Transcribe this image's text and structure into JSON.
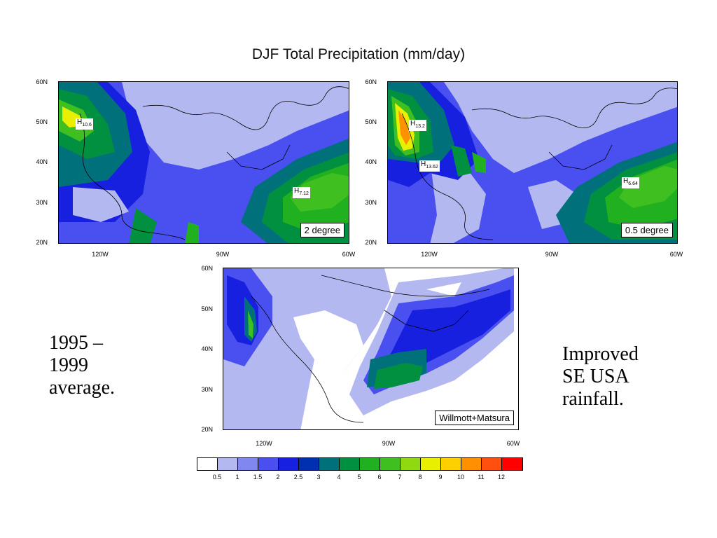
{
  "title": "DJF Total Precipitation (mm/day)",
  "lat_labels": [
    "60N",
    "50N",
    "40N",
    "30N",
    "20N"
  ],
  "lon_labels": [
    "120W",
    "90W",
    "60W"
  ],
  "panels": [
    {
      "id": "2deg",
      "tag": "2 degree",
      "maxima": [
        {
          "base": "H",
          "sub": "10.6"
        },
        {
          "base": "H",
          "sub": "7.12"
        }
      ]
    },
    {
      "id": "05deg",
      "tag": "0.5 degree",
      "maxima": [
        {
          "base": "H",
          "sub": "13.2"
        },
        {
          "base": "H",
          "sub": "13.62"
        },
        {
          "base": "H",
          "sub": "6.64"
        }
      ]
    },
    {
      "id": "obs",
      "tag": "Willmott+Matsura",
      "maxima": []
    }
  ],
  "notes": {
    "left": [
      "1995 –",
      "1999",
      "average."
    ],
    "right": [
      "Improved",
      "SE USA",
      "rainfall."
    ]
  },
  "colorbar": {
    "labels": [
      "0.5",
      "1",
      "1.5",
      "2",
      "2.5",
      "3",
      "4",
      "5",
      "6",
      "7",
      "8",
      "9",
      "10",
      "11",
      "12"
    ],
    "colors": [
      "#ffffff",
      "#b4b8f0",
      "#8088f0",
      "#4a50f0",
      "#1820e0",
      "#0030b0",
      "#00707a",
      "#009040",
      "#20b020",
      "#40c020",
      "#90d810",
      "#e8f000",
      "#ffd000",
      "#ff9000",
      "#ff5010",
      "#ff0000"
    ]
  }
}
